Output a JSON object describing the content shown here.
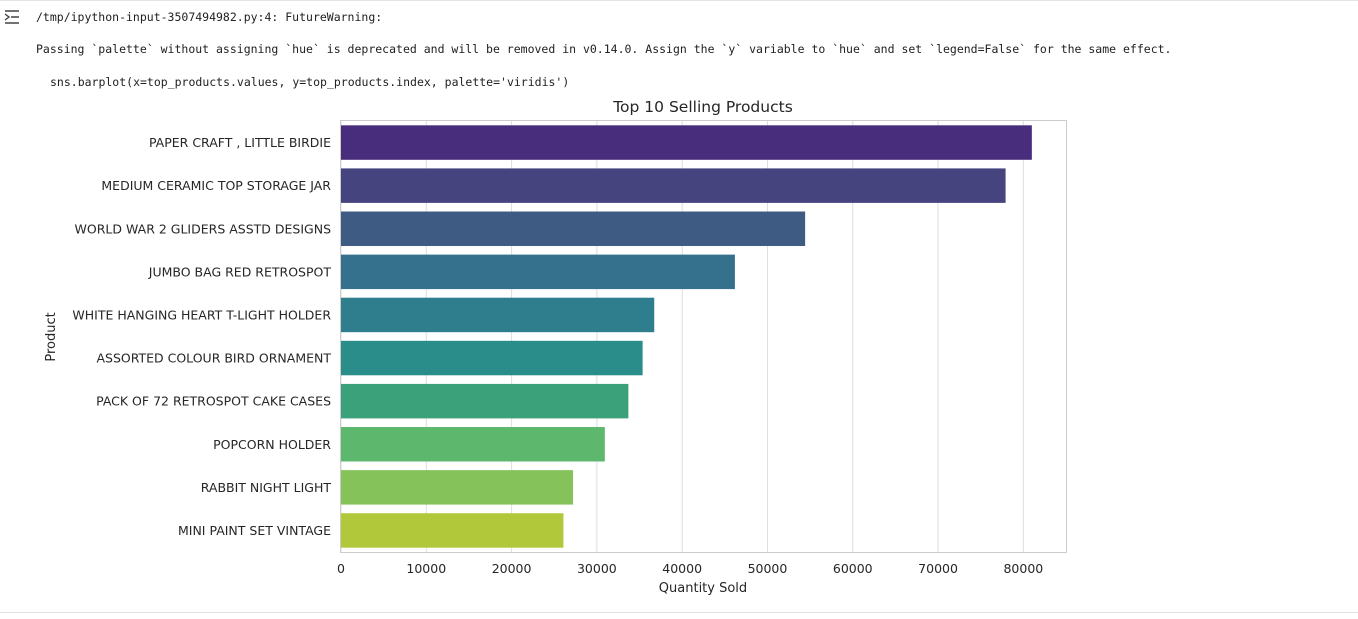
{
  "output": {
    "warning_path": "/tmp/ipython-input-3507494982.py:4: FutureWarning:",
    "warning_message": "Passing `palette` without assigning `hue` is deprecated and will be removed in v0.14.0. Assign the `y` variable to `hue` and set `legend=False` for the same effect.",
    "code_line": "sns.barplot(x=top_products.values, y=top_products.index, palette='viridis')",
    "icon": "output-toggle-icon"
  },
  "chart_data": {
    "type": "bar",
    "orientation": "horizontal",
    "title": "Top 10 Selling Products",
    "xlabel": "Quantity Sold",
    "ylabel": "Product",
    "categories": [
      "PAPER CRAFT , LITTLE BIRDIE",
      "MEDIUM CERAMIC TOP STORAGE JAR",
      "WORLD WAR 2 GLIDERS ASSTD DESIGNS",
      "JUMBO BAG RED RETROSPOT",
      "WHITE HANGING HEART T-LIGHT HOLDER",
      "ASSORTED COLOUR BIRD ORNAMENT",
      "PACK OF 72 RETROSPOT CAKE CASES",
      "POPCORN HOLDER",
      "RABBIT NIGHT LIGHT",
      "MINI PAINT SET VINTAGE "
    ],
    "values": [
      80995,
      77916,
      54415,
      46181,
      36725,
      35362,
      33693,
      30931,
      27202,
      26076
    ],
    "colors": [
      "#472d7b",
      "#46447f",
      "#3e5b84",
      "#35708d",
      "#2e7e8e",
      "#2a8d89",
      "#3aa17b",
      "#5db86e",
      "#86c25a",
      "#b2c83b"
    ],
    "xticks": [
      0,
      10000,
      20000,
      30000,
      40000,
      50000,
      60000,
      70000,
      80000
    ],
    "xlim": [
      0,
      85000
    ],
    "grid": "vertical"
  }
}
